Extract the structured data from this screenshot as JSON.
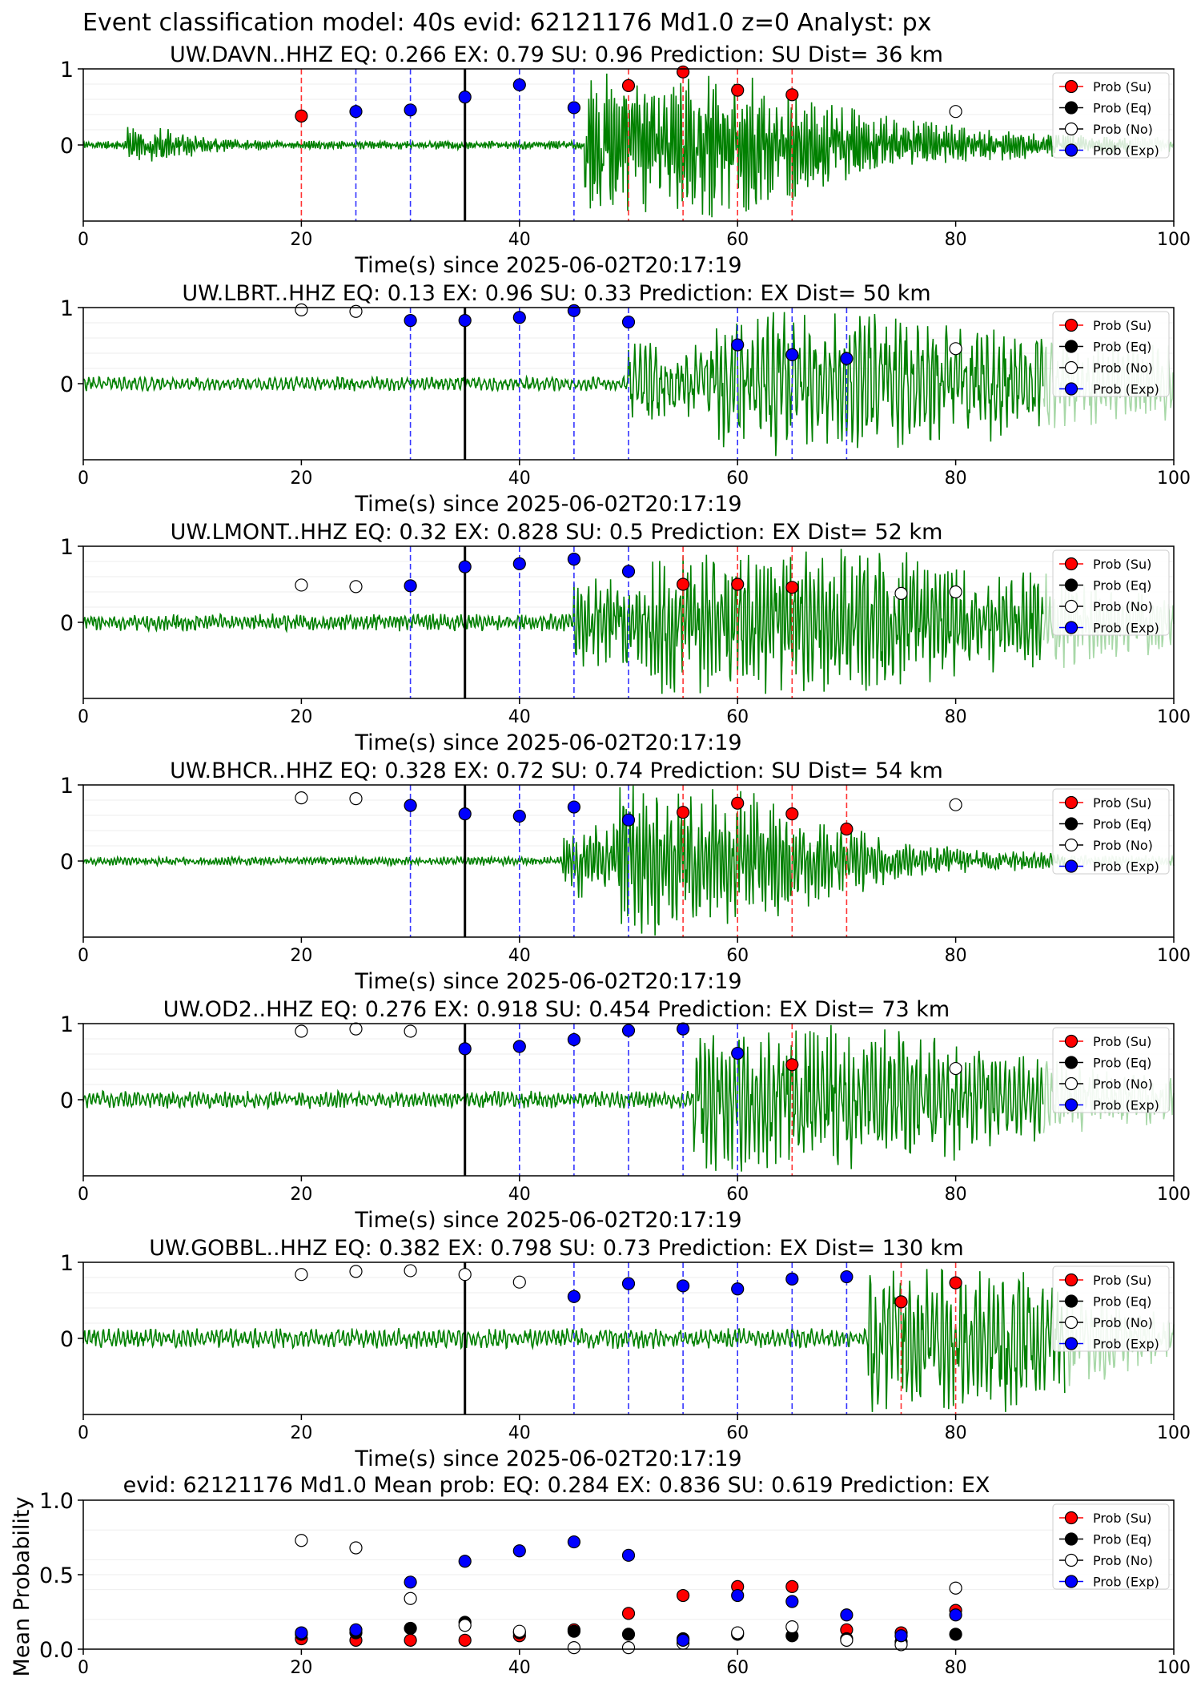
{
  "figure_title": "Event classification model: 40s evid: 62121176 Md1.0 z=0 Analyst: px",
  "legend_labels": [
    "Prob (Su)",
    "Prob (Eq)",
    "Prob (No)",
    "Prob (Exp)"
  ],
  "colors": {
    "su": "#ff0000",
    "eq": "#000000",
    "no": "#ffffff",
    "exp": "#0000ff",
    "wave": "#008000",
    "wave_faded": "#a8d8a8"
  },
  "xlabel": "Time(s) since 2025-06-02T20:17:19",
  "chart_data": [
    {
      "type": "scatter",
      "title": "UW.DAVN..HHZ   EQ: 0.266  EX: 0.79  SU: 0.96   Prediction: SU    Dist= 36 km",
      "xlim": [
        0,
        100
      ],
      "ylim": [
        -1,
        1
      ],
      "xticks": [
        "0",
        "20",
        "40",
        "60",
        "80",
        "100"
      ],
      "yticks": [
        "1",
        "0"
      ],
      "xlabel": "Time(s) since 2025-06-02T20:17:19",
      "pick_time": 35,
      "points": [
        {
          "x": 20,
          "y": 0.38,
          "cls": "su"
        },
        {
          "x": 25,
          "y": 0.44,
          "cls": "exp"
        },
        {
          "x": 30,
          "y": 0.46,
          "cls": "exp"
        },
        {
          "x": 35,
          "y": 0.63,
          "cls": "exp"
        },
        {
          "x": 40,
          "y": 0.79,
          "cls": "exp"
        },
        {
          "x": 45,
          "y": 0.49,
          "cls": "exp"
        },
        {
          "x": 50,
          "y": 0.78,
          "cls": "su"
        },
        {
          "x": 55,
          "y": 0.96,
          "cls": "su"
        },
        {
          "x": 60,
          "y": 0.72,
          "cls": "su"
        },
        {
          "x": 65,
          "y": 0.66,
          "cls": "su"
        },
        {
          "x": 80,
          "y": 0.44,
          "cls": "no"
        }
      ],
      "wave": {
        "seed": 11,
        "noise": 0.06,
        "bursts": [
          {
            "t0": 4,
            "t1": 8,
            "amp": 0.18,
            "tau": 3
          },
          {
            "t0": 46,
            "t1": 54,
            "amp": 0.9,
            "tau": 10
          },
          {
            "t0": 54,
            "t1": 64,
            "amp": 0.45,
            "tau": 14
          }
        ],
        "freq": 3.0,
        "fade_from": 96
      }
    },
    {
      "type": "scatter",
      "title": "UW.LBRT..HHZ   EQ: 0.13  EX: 0.96  SU: 0.33   Prediction: EX    Dist= 50 km",
      "xlim": [
        0,
        100
      ],
      "ylim": [
        -1,
        1
      ],
      "xticks": [
        "0",
        "20",
        "40",
        "60",
        "80",
        "100"
      ],
      "yticks": [
        "1",
        "0"
      ],
      "xlabel": "Time(s) since 2025-06-02T20:17:19",
      "pick_time": 35,
      "points": [
        {
          "x": 20,
          "y": 0.97,
          "cls": "no"
        },
        {
          "x": 25,
          "y": 0.95,
          "cls": "no"
        },
        {
          "x": 30,
          "y": 0.83,
          "cls": "exp"
        },
        {
          "x": 35,
          "y": 0.83,
          "cls": "exp"
        },
        {
          "x": 40,
          "y": 0.87,
          "cls": "exp"
        },
        {
          "x": 45,
          "y": 0.96,
          "cls": "exp"
        },
        {
          "x": 50,
          "y": 0.81,
          "cls": "exp"
        },
        {
          "x": 60,
          "y": 0.51,
          "cls": "exp"
        },
        {
          "x": 65,
          "y": 0.38,
          "cls": "exp"
        },
        {
          "x": 70,
          "y": 0.33,
          "cls": "exp"
        },
        {
          "x": 80,
          "y": 0.46,
          "cls": "no"
        }
      ],
      "wave": {
        "seed": 23,
        "noise": 0.1,
        "bursts": [
          {
            "t0": 50,
            "t1": 58,
            "amp": 0.45,
            "tau": 12
          },
          {
            "t0": 58,
            "t1": 68,
            "amp": 0.95,
            "tau": 14
          },
          {
            "t0": 68,
            "t1": 100,
            "amp": 0.3,
            "tau": 25
          }
        ],
        "freq": 1.0,
        "fade_from": 88
      }
    },
    {
      "type": "scatter",
      "title": "UW.LMONT..HHZ   EQ: 0.32  EX: 0.828  SU: 0.5   Prediction: EX    Dist= 52 km",
      "xlim": [
        0,
        100
      ],
      "ylim": [
        -1,
        1
      ],
      "xticks": [
        "0",
        "20",
        "40",
        "60",
        "80",
        "100"
      ],
      "yticks": [
        "1",
        "0"
      ],
      "xlabel": "Time(s) since 2025-06-02T20:17:19",
      "pick_time": 35,
      "points": [
        {
          "x": 20,
          "y": 0.49,
          "cls": "no"
        },
        {
          "x": 25,
          "y": 0.47,
          "cls": "no"
        },
        {
          "x": 30,
          "y": 0.48,
          "cls": "exp"
        },
        {
          "x": 35,
          "y": 0.73,
          "cls": "exp"
        },
        {
          "x": 40,
          "y": 0.77,
          "cls": "exp"
        },
        {
          "x": 45,
          "y": 0.83,
          "cls": "exp"
        },
        {
          "x": 50,
          "y": 0.67,
          "cls": "exp"
        },
        {
          "x": 55,
          "y": 0.5,
          "cls": "su"
        },
        {
          "x": 60,
          "y": 0.5,
          "cls": "su"
        },
        {
          "x": 65,
          "y": 0.46,
          "cls": "su"
        },
        {
          "x": 75,
          "y": 0.38,
          "cls": "no"
        },
        {
          "x": 80,
          "y": 0.4,
          "cls": "no"
        }
      ],
      "wave": {
        "seed": 37,
        "noise": 0.12,
        "bursts": [
          {
            "t0": 45,
            "t1": 52,
            "amp": 0.5,
            "tau": 10
          },
          {
            "t0": 52,
            "t1": 66,
            "amp": 0.9,
            "tau": 14
          },
          {
            "t0": 66,
            "t1": 90,
            "amp": 0.35,
            "tau": 18
          }
        ],
        "freq": 1.6,
        "fade_from": 88
      }
    },
    {
      "type": "scatter",
      "title": "UW.BHCR..HHZ   EQ: 0.328  EX: 0.72  SU: 0.74   Prediction: SU    Dist= 54 km",
      "xlim": [
        0,
        100
      ],
      "ylim": [
        -1,
        1
      ],
      "xticks": [
        "0",
        "20",
        "40",
        "60",
        "80",
        "100"
      ],
      "yticks": [
        "1",
        "0"
      ],
      "xlabel": "Time(s) since 2025-06-02T20:17:19",
      "pick_time": 35,
      "points": [
        {
          "x": 20,
          "y": 0.83,
          "cls": "no"
        },
        {
          "x": 25,
          "y": 0.82,
          "cls": "no"
        },
        {
          "x": 30,
          "y": 0.73,
          "cls": "exp"
        },
        {
          "x": 35,
          "y": 0.62,
          "cls": "exp"
        },
        {
          "x": 40,
          "y": 0.59,
          "cls": "exp"
        },
        {
          "x": 45,
          "y": 0.71,
          "cls": "exp"
        },
        {
          "x": 50,
          "y": 0.54,
          "cls": "exp"
        },
        {
          "x": 55,
          "y": 0.64,
          "cls": "su"
        },
        {
          "x": 60,
          "y": 0.76,
          "cls": "su"
        },
        {
          "x": 65,
          "y": 0.62,
          "cls": "su"
        },
        {
          "x": 70,
          "y": 0.42,
          "cls": "su"
        },
        {
          "x": 80,
          "y": 0.74,
          "cls": "no"
        }
      ],
      "wave": {
        "seed": 49,
        "noise": 0.06,
        "bursts": [
          {
            "t0": 44,
            "t1": 49,
            "amp": 0.45,
            "tau": 6
          },
          {
            "t0": 49,
            "t1": 58,
            "amp": 0.95,
            "tau": 6
          },
          {
            "t0": 58,
            "t1": 70,
            "amp": 0.3,
            "tau": 10
          }
        ],
        "freq": 2.0,
        "fade_from": 90
      }
    },
    {
      "type": "scatter",
      "title": "UW.OD2..HHZ   EQ: 0.276  EX: 0.918  SU: 0.454   Prediction: EX    Dist= 73 km",
      "xlim": [
        0,
        100
      ],
      "ylim": [
        -1,
        1
      ],
      "xticks": [
        "0",
        "20",
        "40",
        "60",
        "80",
        "100"
      ],
      "yticks": [
        "1",
        "0"
      ],
      "xlabel": "Time(s) since 2025-06-02T20:17:19",
      "pick_time": 35,
      "points": [
        {
          "x": 20,
          "y": 0.9,
          "cls": "no"
        },
        {
          "x": 25,
          "y": 0.93,
          "cls": "no"
        },
        {
          "x": 30,
          "y": 0.9,
          "cls": "no"
        },
        {
          "x": 35,
          "y": 0.67,
          "cls": "exp"
        },
        {
          "x": 40,
          "y": 0.7,
          "cls": "exp"
        },
        {
          "x": 45,
          "y": 0.79,
          "cls": "exp"
        },
        {
          "x": 50,
          "y": 0.91,
          "cls": "exp"
        },
        {
          "x": 55,
          "y": 0.93,
          "cls": "exp"
        },
        {
          "x": 60,
          "y": 0.61,
          "cls": "exp"
        },
        {
          "x": 65,
          "y": 0.46,
          "cls": "su"
        },
        {
          "x": 80,
          "y": 0.41,
          "cls": "no"
        }
      ],
      "wave": {
        "seed": 61,
        "noise": 0.12,
        "bursts": [
          {
            "t0": 56,
            "t1": 62,
            "amp": 0.9,
            "tau": 8
          },
          {
            "t0": 62,
            "t1": 72,
            "amp": 0.8,
            "tau": 10
          },
          {
            "t0": 72,
            "t1": 90,
            "amp": 0.25,
            "tau": 14
          }
        ],
        "freq": 1.3,
        "fade_from": 88
      }
    },
    {
      "type": "scatter",
      "title": "UW.GOBBL..HHZ   EQ: 0.382  EX: 0.798  SU: 0.73   Prediction: EX    Dist= 130 km",
      "xlim": [
        0,
        100
      ],
      "ylim": [
        -1,
        1
      ],
      "xticks": [
        "0",
        "20",
        "40",
        "60",
        "80",
        "100"
      ],
      "yticks": [
        "1",
        "0"
      ],
      "xlabel": "Time(s) since 2025-06-02T20:17:19",
      "pick_time": 35,
      "points": [
        {
          "x": 20,
          "y": 0.84,
          "cls": "no"
        },
        {
          "x": 25,
          "y": 0.88,
          "cls": "no"
        },
        {
          "x": 30,
          "y": 0.89,
          "cls": "no"
        },
        {
          "x": 35,
          "y": 0.84,
          "cls": "no"
        },
        {
          "x": 40,
          "y": 0.74,
          "cls": "no"
        },
        {
          "x": 45,
          "y": 0.55,
          "cls": "exp"
        },
        {
          "x": 50,
          "y": 0.72,
          "cls": "exp"
        },
        {
          "x": 55,
          "y": 0.69,
          "cls": "exp"
        },
        {
          "x": 60,
          "y": 0.65,
          "cls": "exp"
        },
        {
          "x": 65,
          "y": 0.78,
          "cls": "exp"
        },
        {
          "x": 70,
          "y": 0.81,
          "cls": "exp"
        },
        {
          "x": 75,
          "y": 0.48,
          "cls": "su"
        },
        {
          "x": 80,
          "y": 0.73,
          "cls": "su"
        }
      ],
      "wave": {
        "seed": 73,
        "noise": 0.14,
        "bursts": [
          {
            "t0": 72,
            "t1": 82,
            "amp": 0.9,
            "tau": 6
          },
          {
            "t0": 82,
            "t1": 92,
            "amp": 0.35,
            "tau": 8
          }
        ],
        "freq": 1.1,
        "fade_from": 90
      }
    },
    {
      "type": "scatter",
      "title": "evid: 62121176  Md1.0   Mean prob:   EQ: 0.284  EX: 0.836  SU: 0.619   Prediction: EX",
      "ylabel": "Mean Probability",
      "xlim": [
        0,
        100
      ],
      "ylim": [
        0,
        1
      ],
      "xticks": [
        "0",
        "20",
        "40",
        "60",
        "80",
        "100"
      ],
      "yticks": [
        "1.0",
        "0.5",
        "0.0"
      ],
      "series": [
        {
          "name": "Prob (Su)",
          "cls": "su",
          "x": [
            20,
            25,
            30,
            35,
            40,
            45,
            50,
            55,
            60,
            65,
            70,
            75,
            80
          ],
          "y": [
            0.07,
            0.06,
            0.06,
            0.06,
            0.09,
            0.13,
            0.24,
            0.36,
            0.42,
            0.42,
            0.13,
            0.11,
            0.26
          ]
        },
        {
          "name": "Prob (Eq)",
          "cls": "eq",
          "x": [
            20,
            25,
            30,
            35,
            40,
            45,
            50,
            55,
            60,
            65,
            70,
            75,
            80
          ],
          "y": [
            0.1,
            0.11,
            0.14,
            0.18,
            0.11,
            0.12,
            0.1,
            0.07,
            0.1,
            0.09,
            0.07,
            0.05,
            0.1
          ]
        },
        {
          "name": "Prob (No)",
          "cls": "no",
          "x": [
            20,
            25,
            30,
            35,
            40,
            45,
            50,
            55,
            60,
            65,
            70,
            75,
            80
          ],
          "y": [
            0.73,
            0.68,
            0.34,
            0.16,
            0.12,
            0.01,
            0.01,
            0.04,
            0.11,
            0.15,
            0.06,
            0.03,
            0.41
          ]
        },
        {
          "name": "Prob (Exp)",
          "cls": "exp",
          "x": [
            20,
            25,
            30,
            35,
            40,
            45,
            50,
            55,
            60,
            65,
            70,
            75,
            80
          ],
          "y": [
            0.11,
            0.13,
            0.45,
            0.59,
            0.66,
            0.72,
            0.63,
            0.06,
            0.36,
            0.32,
            0.23,
            0.09,
            0.23
          ]
        }
      ]
    }
  ]
}
